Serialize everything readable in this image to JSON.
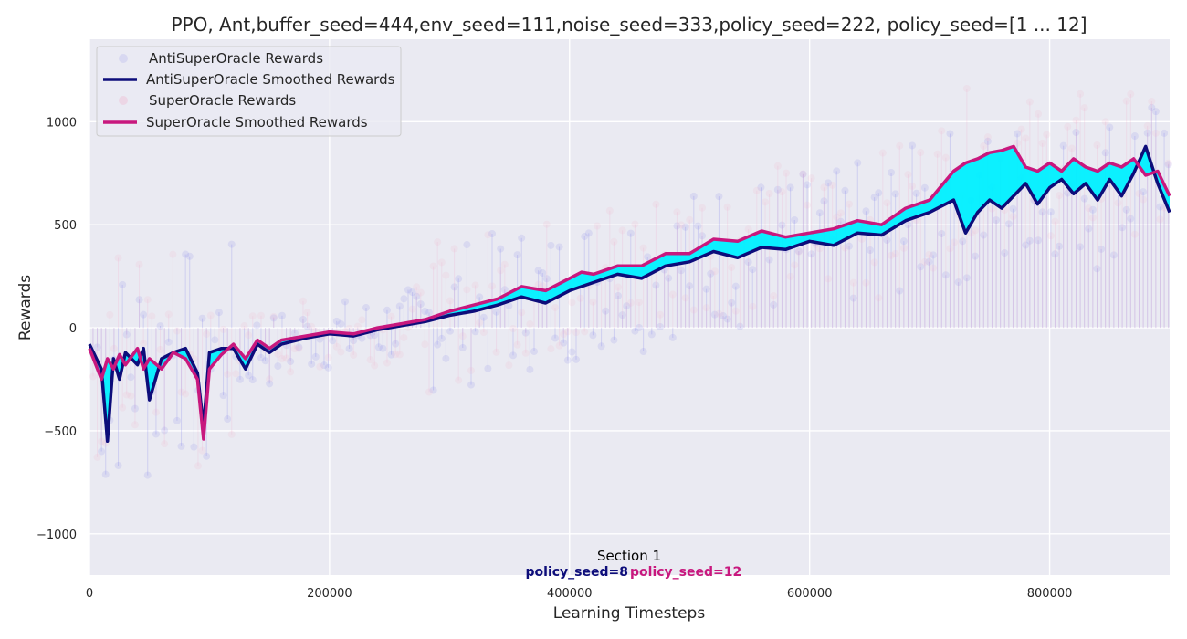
{
  "chart_data": {
    "type": "line",
    "title": "PPO, Ant,buffer_seed=444,env_seed=111,noise_seed=333,policy_seed=222, policy_seed=[1 ... 12]",
    "xlabel": "Learning Timesteps",
    "ylabel": "Rewards",
    "xlim": [
      0,
      900000
    ],
    "ylim": [
      -1200,
      1400
    ],
    "grid": true,
    "legend_position": "top-left",
    "x_ticks": [
      0,
      200000,
      400000,
      600000,
      800000
    ],
    "x_tick_labels": [
      "0",
      "200000",
      "400000",
      "600000",
      "800000"
    ],
    "y_ticks": [
      -1000,
      -500,
      0,
      500,
      1000
    ],
    "y_tick_labels": [
      "−1000",
      "−500",
      "0",
      "500",
      "1000"
    ],
    "legend": [
      {
        "label": "AntiSuperOracle Rewards",
        "style": "marker",
        "color": "#6f6fe8"
      },
      {
        "label": "AntiSuperOracle Smoothed Rewards",
        "style": "line",
        "color": "#0d0d7a"
      },
      {
        "label": "SuperOracle Rewards",
        "style": "marker",
        "color": "#f2a8c8"
      },
      {
        "label": "SuperOracle Smoothed Rewards",
        "style": "line",
        "color": "#c8187e"
      }
    ],
    "annotations": {
      "section": "Section 1",
      "seed_left": "policy_seed=8",
      "seed_right": "policy_seed=12",
      "seed_left_color": "#0d0d7a",
      "seed_right_color": "#c8187e"
    },
    "fill_between_color": "#00f0ff",
    "series": [
      {
        "name": "AntiSuperOracle Smoothed Rewards",
        "color": "#0d0d7a",
        "x": [
          0,
          10000,
          15000,
          20000,
          25000,
          30000,
          40000,
          45000,
          50000,
          60000,
          70000,
          80000,
          90000,
          95000,
          100000,
          110000,
          120000,
          130000,
          140000,
          150000,
          160000,
          180000,
          200000,
          220000,
          240000,
          260000,
          280000,
          300000,
          320000,
          340000,
          360000,
          380000,
          400000,
          410000,
          420000,
          440000,
          460000,
          480000,
          500000,
          520000,
          540000,
          560000,
          580000,
          600000,
          620000,
          640000,
          660000,
          680000,
          700000,
          720000,
          730000,
          740000,
          750000,
          760000,
          770000,
          780000,
          790000,
          800000,
          810000,
          820000,
          830000,
          840000,
          850000,
          860000,
          870000,
          880000,
          890000,
          900000
        ],
        "y": [
          -80,
          -200,
          -550,
          -150,
          -250,
          -120,
          -180,
          -100,
          -350,
          -150,
          -120,
          -100,
          -220,
          -480,
          -120,
          -100,
          -100,
          -200,
          -80,
          -120,
          -80,
          -50,
          -30,
          -40,
          -10,
          10,
          30,
          60,
          80,
          110,
          150,
          120,
          180,
          200,
          220,
          260,
          240,
          300,
          320,
          370,
          340,
          390,
          380,
          420,
          400,
          460,
          450,
          520,
          560,
          620,
          460,
          560,
          620,
          580,
          640,
          700,
          600,
          680,
          720,
          650,
          700,
          620,
          720,
          640,
          750,
          880,
          700,
          560
        ]
      },
      {
        "name": "SuperOracle Smoothed Rewards",
        "color": "#c8187e",
        "x": [
          0,
          10000,
          15000,
          20000,
          25000,
          30000,
          40000,
          45000,
          50000,
          60000,
          70000,
          80000,
          90000,
          95000,
          100000,
          110000,
          120000,
          130000,
          140000,
          150000,
          160000,
          180000,
          200000,
          220000,
          240000,
          260000,
          280000,
          300000,
          320000,
          340000,
          360000,
          380000,
          400000,
          410000,
          420000,
          440000,
          460000,
          480000,
          500000,
          520000,
          540000,
          560000,
          580000,
          600000,
          620000,
          640000,
          660000,
          680000,
          700000,
          720000,
          730000,
          740000,
          750000,
          760000,
          770000,
          780000,
          790000,
          800000,
          810000,
          820000,
          830000,
          840000,
          850000,
          860000,
          870000,
          880000,
          890000,
          900000
        ],
        "y": [
          -100,
          -250,
          -150,
          -200,
          -130,
          -180,
          -100,
          -200,
          -150,
          -200,
          -120,
          -150,
          -250,
          -540,
          -200,
          -130,
          -80,
          -150,
          -60,
          -100,
          -60,
          -40,
          -20,
          -30,
          0,
          20,
          40,
          80,
          110,
          140,
          200,
          180,
          240,
          270,
          260,
          300,
          300,
          360,
          360,
          430,
          420,
          470,
          440,
          460,
          480,
          520,
          500,
          580,
          620,
          760,
          800,
          820,
          850,
          860,
          880,
          780,
          760,
          800,
          760,
          820,
          780,
          760,
          800,
          780,
          820,
          740,
          760,
          640
        ]
      }
    ]
  }
}
